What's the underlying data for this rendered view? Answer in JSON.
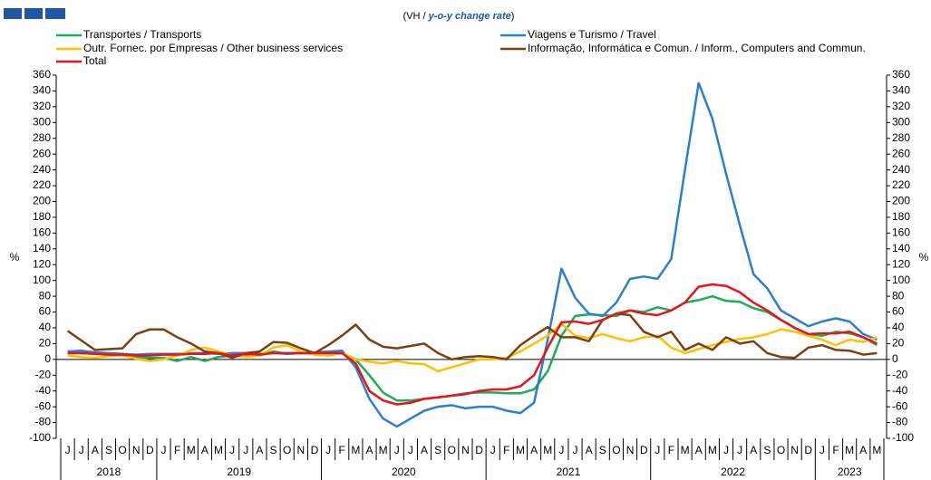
{
  "chart_data": {
    "type": "line",
    "subtitle_parts": [
      "(VH / ",
      "y-o-y change rate",
      ")"
    ],
    "y_label": "%",
    "categories": [
      "J",
      "J",
      "A",
      "S",
      "O",
      "N",
      "D",
      "J",
      "F",
      "M",
      "A",
      "M",
      "J",
      "J",
      "A",
      "S",
      "O",
      "N",
      "D",
      "J",
      "F",
      "M",
      "A",
      "M",
      "J",
      "J",
      "A",
      "S",
      "O",
      "N",
      "D",
      "J",
      "F",
      "M",
      "A",
      "M",
      "J",
      "J",
      "A",
      "S",
      "O",
      "N",
      "D",
      "J",
      "F",
      "M",
      "A",
      "M",
      "J",
      "J",
      "A",
      "S",
      "O",
      "N",
      "D",
      "J",
      "F",
      "M",
      "A",
      "M"
    ],
    "year_groups": [
      {
        "label": "2018",
        "months": 7
      },
      {
        "label": "2019",
        "months": 12
      },
      {
        "label": "2020",
        "months": 12
      },
      {
        "label": "2021",
        "months": 12
      },
      {
        "label": "2022",
        "months": 12
      },
      {
        "label": "2023",
        "months": 5
      }
    ],
    "ylim": [
      -100,
      360
    ],
    "yticks": [
      -100,
      -80,
      -60,
      -40,
      -20,
      0,
      20,
      40,
      60,
      80,
      100,
      120,
      140,
      160,
      180,
      200,
      220,
      240,
      260,
      280,
      300,
      320,
      340,
      360
    ],
    "y2lim": [
      -100,
      360
    ],
    "y2ticks": [
      -100,
      -80,
      -60,
      -40,
      -20,
      0,
      20,
      40,
      60,
      80,
      100,
      120,
      140,
      160,
      180,
      200,
      220,
      240,
      260,
      280,
      300,
      320,
      340,
      360
    ],
    "series": [
      {
        "name": "Transportes / Transports",
        "color": "#1aad5a",
        "values": [
          8,
          8,
          7,
          6,
          5,
          3,
          2,
          2,
          -2,
          3,
          -2,
          3,
          5,
          6,
          5,
          10,
          7,
          8,
          7,
          5,
          8,
          0,
          -20,
          -42,
          -52,
          -52,
          -50,
          -48,
          -46,
          -43,
          -42,
          -42,
          -43,
          -43,
          -38,
          -15,
          30,
          55,
          57,
          56,
          55,
          62,
          60,
          66,
          62,
          72,
          75,
          80,
          74,
          73,
          65,
          60,
          50,
          40,
          32,
          30,
          35,
          33,
          28,
          18
        ]
      },
      {
        "name": "Viagens e Turismo / Travel",
        "color": "#2b7fd0",
        "values": [
          10,
          11,
          9,
          8,
          7,
          6,
          7,
          7,
          7,
          8,
          8,
          7,
          8,
          8,
          7,
          8,
          7,
          8,
          9,
          10,
          11,
          -10,
          -50,
          -75,
          -85,
          -75,
          -65,
          -60,
          -58,
          -62,
          -60,
          -60,
          -65,
          -68,
          -55,
          25,
          115,
          78,
          58,
          55,
          72,
          102,
          105,
          102,
          127,
          240,
          350,
          305,
          235,
          170,
          108,
          90,
          62,
          52,
          42,
          48,
          52,
          48,
          32,
          25
        ]
      },
      {
        "name": "Outr. Fornec. por Empresas / Other business services",
        "color": "#ffc000",
        "values": [
          5,
          3,
          2,
          4,
          5,
          1,
          -2,
          0,
          5,
          12,
          15,
          10,
          5,
          3,
          5,
          15,
          18,
          10,
          6,
          5,
          8,
          0,
          -3,
          -5,
          -2,
          -5,
          -6,
          -15,
          -10,
          -5,
          0,
          0,
          2,
          10,
          20,
          30,
          45,
          30,
          27,
          32,
          27,
          23,
          28,
          30,
          15,
          8,
          13,
          18,
          22,
          26,
          28,
          32,
          38,
          35,
          30,
          25,
          18,
          25,
          22,
          28
        ]
      },
      {
        "name": "Informação, Informática e Comun. / Inform., Computers and Commun.",
        "color": "#7b4012",
        "values": [
          36,
          24,
          12,
          13,
          14,
          32,
          38,
          38,
          28,
          20,
          10,
          8,
          2,
          8,
          10,
          22,
          21,
          14,
          8,
          18,
          30,
          44,
          25,
          16,
          14,
          17,
          20,
          8,
          0,
          3,
          4,
          3,
          0,
          18,
          30,
          41,
          28,
          28,
          23,
          50,
          58,
          56,
          35,
          28,
          35,
          12,
          20,
          12,
          28,
          20,
          23,
          8,
          3,
          2,
          15,
          18,
          12,
          11,
          6,
          8
        ]
      },
      {
        "name": "Total",
        "color": "#e8141c",
        "values": [
          8,
          8,
          7,
          6,
          6,
          5,
          5,
          6,
          6,
          7,
          7,
          8,
          5,
          7,
          6,
          8,
          8,
          8,
          8,
          8,
          8,
          -5,
          -40,
          -52,
          -57,
          -55,
          -50,
          -48,
          -46,
          -44,
          -40,
          -38,
          -38,
          -34,
          -20,
          15,
          47,
          48,
          45,
          50,
          58,
          62,
          58,
          56,
          62,
          72,
          92,
          95,
          93,
          85,
          72,
          62,
          50,
          40,
          32,
          33,
          33,
          35,
          28,
          20
        ]
      }
    ]
  }
}
